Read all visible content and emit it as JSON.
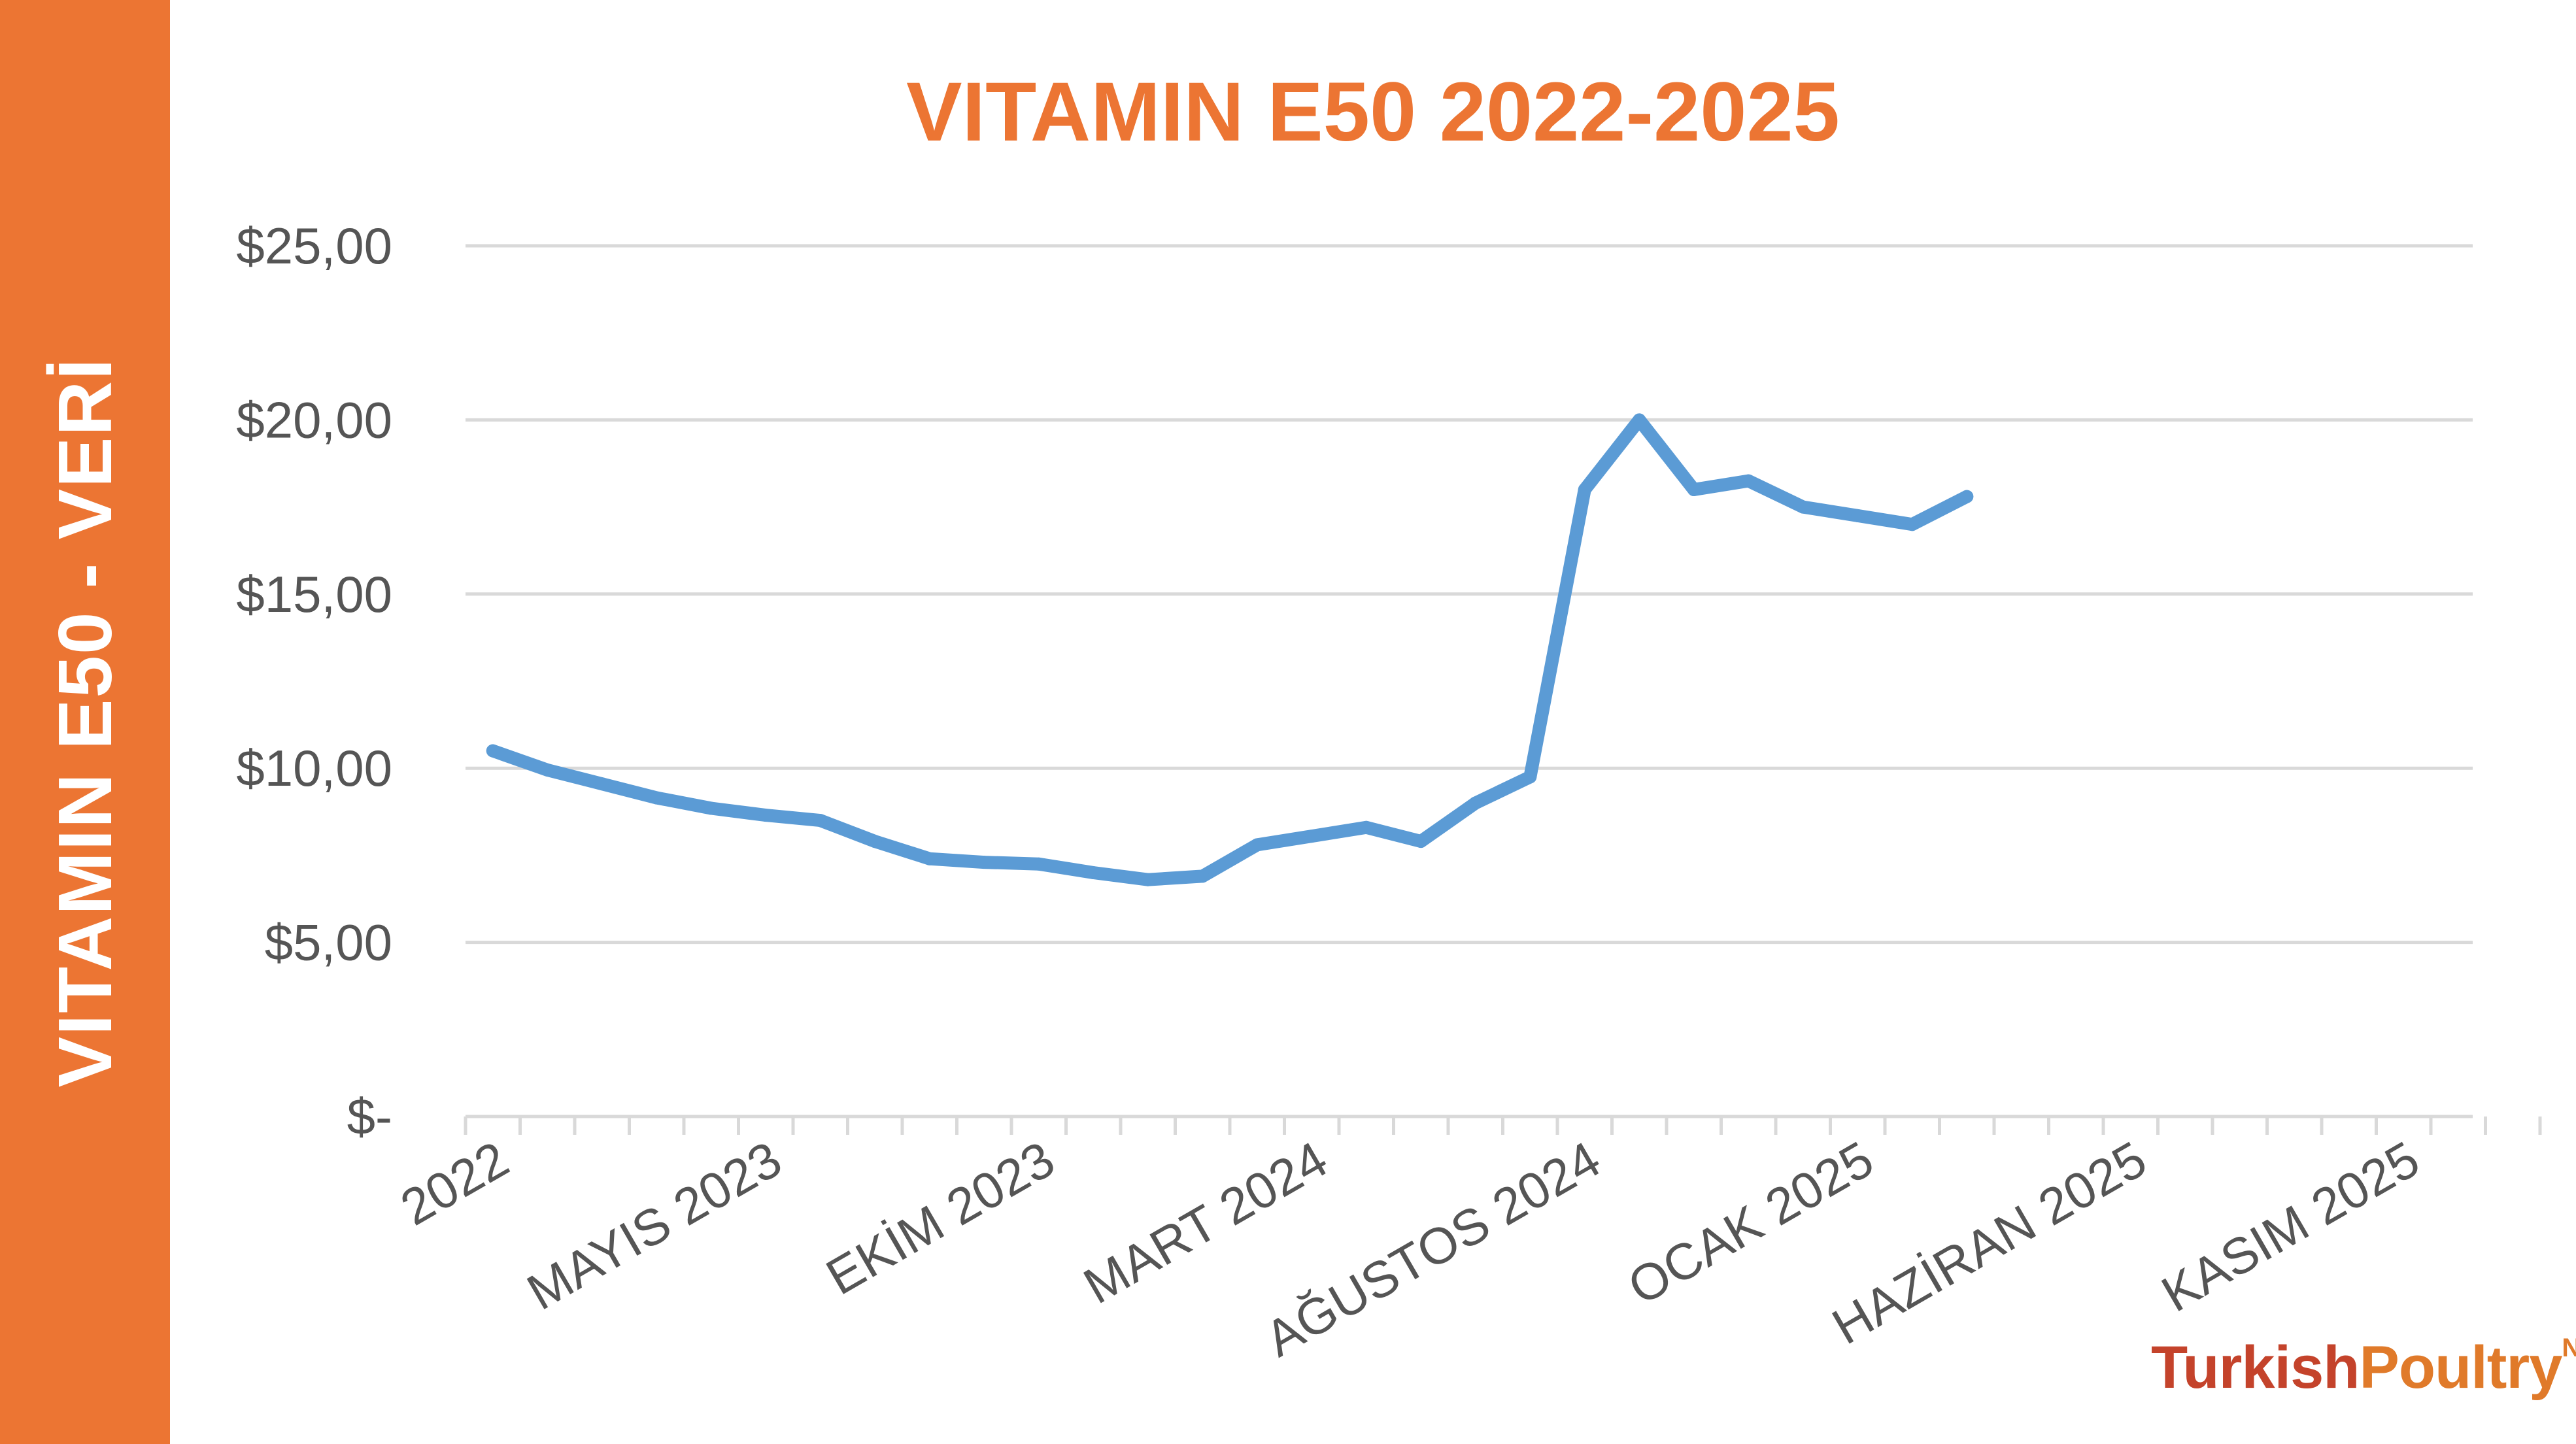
{
  "sidebar_label": "VITAMIN E50 - VERİ",
  "colors": {
    "accent": "#ec7533",
    "line": "#5b9bd5",
    "grid": "#d9d9d9"
  },
  "logo": {
    "word1": "Turkish",
    "word2": "Poultry",
    "suffix": "Net"
  },
  "chart_data": {
    "type": "line",
    "title": "VITAMIN E50 2022-2025",
    "xlabel": "",
    "ylabel": "",
    "ylim": [
      0,
      25
    ],
    "y_ticks": [
      "$-",
      "$5,00",
      "$10,00",
      "$15,00",
      "$20,00",
      "$25,00"
    ],
    "y_tick_values": [
      0,
      5,
      10,
      15,
      20,
      25
    ],
    "grid": true,
    "legend": "none",
    "months_total": 38,
    "x_tick_labels": [
      {
        "month_index": 0,
        "label": "2022"
      },
      {
        "month_index": 5,
        "label": "MAYIS 2023"
      },
      {
        "month_index": 10,
        "label": "EKİM 2023"
      },
      {
        "month_index": 15,
        "label": "MART 2024"
      },
      {
        "month_index": 20,
        "label": "AĞUSTOS 2024"
      },
      {
        "month_index": 25,
        "label": "OCAK 2025"
      },
      {
        "month_index": 30,
        "label": "HAZİRAN 2025"
      },
      {
        "month_index": 35,
        "label": "KASIM 2025"
      }
    ],
    "series": [
      {
        "values": [
          10.5,
          9.95,
          9.55,
          9.15,
          8.85,
          8.65,
          8.5,
          7.9,
          7.4,
          7.3,
          7.25,
          7.0,
          6.8,
          6.9,
          7.8,
          8.05,
          8.3,
          7.9,
          9.0,
          9.75,
          18.0,
          20.0,
          18.0,
          18.25,
          17.5,
          17.25,
          17.0,
          17.8
        ]
      }
    ]
  }
}
